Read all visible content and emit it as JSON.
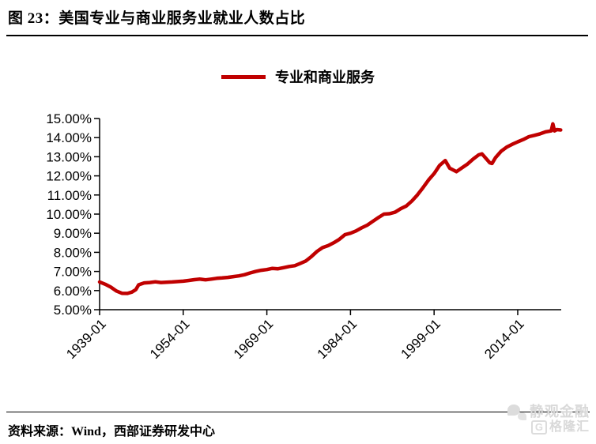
{
  "header": {
    "title": "图 23：美国专业与商业服务业就业人数占比"
  },
  "legend": {
    "label": "专业和商业服务",
    "color": "#C00000"
  },
  "footer": {
    "source": "资料来源：Wind，西部证券研发中心"
  },
  "watermark": {
    "line1": "静观金融",
    "logo_letter": "G",
    "line2": "格隆汇"
  },
  "chart_data": {
    "type": "line",
    "title": "图 23：美国专业与商业服务业就业人数占比",
    "xlabel": "",
    "ylabel": "",
    "grid": false,
    "legend_position": "top-center",
    "ylim": [
      5,
      15
    ],
    "xlim": [
      1939,
      2021.8
    ],
    "y_ticks": [
      "5.00%",
      "6.00%",
      "7.00%",
      "8.00%",
      "9.00%",
      "10.00%",
      "11.00%",
      "12.00%",
      "13.00%",
      "14.00%",
      "15.00%"
    ],
    "x_ticks": [
      {
        "label": "1939-01",
        "year": 1939
      },
      {
        "label": "1954-01",
        "year": 1954
      },
      {
        "label": "1969-01",
        "year": 1969
      },
      {
        "label": "1984-01",
        "year": 1984
      },
      {
        "label": "1999-01",
        "year": 1999
      },
      {
        "label": "2014-01",
        "year": 2014
      }
    ],
    "series": [
      {
        "name": "专业和商业服务",
        "color": "#C00000",
        "points": [
          [
            1939,
            6.45
          ],
          [
            1940,
            6.33
          ],
          [
            1941,
            6.18
          ],
          [
            1942,
            5.98
          ],
          [
            1943,
            5.86
          ],
          [
            1944,
            5.85
          ],
          [
            1944.8,
            5.92
          ],
          [
            1945.5,
            6.05
          ],
          [
            1946,
            6.3
          ],
          [
            1947,
            6.4
          ],
          [
            1948,
            6.42
          ],
          [
            1949,
            6.46
          ],
          [
            1950,
            6.42
          ],
          [
            1951,
            6.44
          ],
          [
            1952,
            6.45
          ],
          [
            1953,
            6.47
          ],
          [
            1954,
            6.49
          ],
          [
            1955,
            6.53
          ],
          [
            1956,
            6.57
          ],
          [
            1957,
            6.6
          ],
          [
            1958,
            6.56
          ],
          [
            1959,
            6.6
          ],
          [
            1960,
            6.64
          ],
          [
            1961,
            6.66
          ],
          [
            1962,
            6.69
          ],
          [
            1963,
            6.73
          ],
          [
            1964,
            6.77
          ],
          [
            1965,
            6.83
          ],
          [
            1966,
            6.92
          ],
          [
            1967,
            7.0
          ],
          [
            1968,
            7.06
          ],
          [
            1969,
            7.1
          ],
          [
            1970,
            7.16
          ],
          [
            1971,
            7.14
          ],
          [
            1972,
            7.2
          ],
          [
            1973,
            7.26
          ],
          [
            1974,
            7.3
          ],
          [
            1975,
            7.42
          ],
          [
            1976,
            7.55
          ],
          [
            1977,
            7.78
          ],
          [
            1978,
            8.05
          ],
          [
            1979,
            8.25
          ],
          [
            1980,
            8.35
          ],
          [
            1981,
            8.5
          ],
          [
            1982,
            8.68
          ],
          [
            1983,
            8.92
          ],
          [
            1984,
            9.0
          ],
          [
            1985,
            9.12
          ],
          [
            1986,
            9.28
          ],
          [
            1987,
            9.42
          ],
          [
            1988,
            9.62
          ],
          [
            1989,
            9.82
          ],
          [
            1990,
            10.0
          ],
          [
            1991,
            10.02
          ],
          [
            1992,
            10.1
          ],
          [
            1993,
            10.28
          ],
          [
            1994,
            10.42
          ],
          [
            1995,
            10.68
          ],
          [
            1996,
            11.0
          ],
          [
            1997,
            11.38
          ],
          [
            1998,
            11.78
          ],
          [
            1999,
            12.12
          ],
          [
            2000,
            12.55
          ],
          [
            2001,
            12.8
          ],
          [
            2001.8,
            12.4
          ],
          [
            2003,
            12.22
          ],
          [
            2004,
            12.42
          ],
          [
            2005,
            12.62
          ],
          [
            2006,
            12.88
          ],
          [
            2007,
            13.1
          ],
          [
            2007.6,
            13.15
          ],
          [
            2009,
            12.68
          ],
          [
            2009.4,
            12.65
          ],
          [
            2010,
            12.95
          ],
          [
            2011,
            13.28
          ],
          [
            2012,
            13.5
          ],
          [
            2013,
            13.65
          ],
          [
            2014,
            13.78
          ],
          [
            2015,
            13.9
          ],
          [
            2016,
            14.05
          ],
          [
            2017,
            14.12
          ],
          [
            2018,
            14.2
          ],
          [
            2019,
            14.3
          ],
          [
            2020,
            14.35
          ],
          [
            2020.3,
            14.72
          ],
          [
            2020.6,
            14.35
          ],
          [
            2021,
            14.42
          ],
          [
            2021.7,
            14.4
          ]
        ]
      }
    ]
  }
}
